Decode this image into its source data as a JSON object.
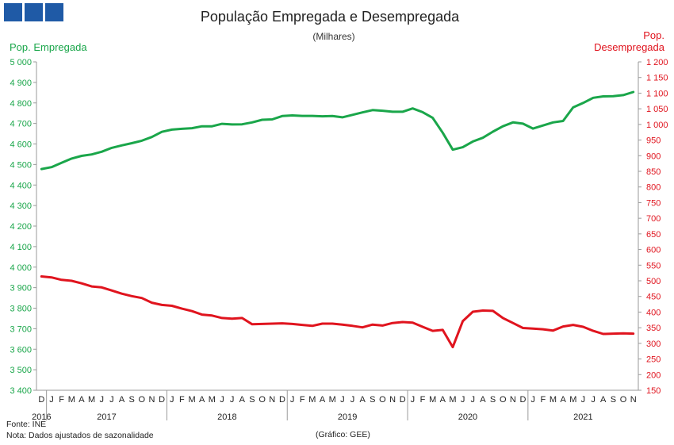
{
  "header": {
    "title": "População Empregada e Desempregada",
    "subtitle": "(Milhares)",
    "left_axis_label": "Pop. Empregada",
    "right_axis_label_line1": "Pop.",
    "right_axis_label_line2": "Desempregada"
  },
  "footer": {
    "source": "Fonte: INE",
    "note": "Nota: Dados ajustados de sazonalidade",
    "credit": "(Gráfico: GEE)"
  },
  "colors": {
    "logo": "#1f5aa6",
    "employed": "#1aa64a",
    "unemployed": "#e0141e",
    "axis": "#9a9a9a"
  },
  "chart_data": {
    "type": "line",
    "title": "População Empregada e Desempregada",
    "subtitle": "(Milhares)",
    "x_month_labels": [
      "D",
      "J",
      "F",
      "M",
      "A",
      "M",
      "J",
      "J",
      "A",
      "S",
      "O",
      "N",
      "D",
      "J",
      "F",
      "M",
      "A",
      "M",
      "J",
      "J",
      "A",
      "S",
      "O",
      "N",
      "D",
      "J",
      "F",
      "M",
      "A",
      "M",
      "J",
      "J",
      "A",
      "S",
      "O",
      "N",
      "D",
      "J",
      "F",
      "M",
      "A",
      "M",
      "J",
      "J",
      "A",
      "S",
      "O",
      "N",
      "D",
      "J",
      "F",
      "M",
      "A",
      "M",
      "J",
      "J",
      "A",
      "S",
      "O",
      "N"
    ],
    "x_year_labels": [
      {
        "label": "2016",
        "start": 0,
        "end": 0
      },
      {
        "label": "2017",
        "start": 1,
        "end": 12
      },
      {
        "label": "2018",
        "start": 13,
        "end": 24
      },
      {
        "label": "2019",
        "start": 25,
        "end": 36
      },
      {
        "label": "2020",
        "start": 37,
        "end": 48
      },
      {
        "label": "2021",
        "start": 49,
        "end": 59
      }
    ],
    "y_left": {
      "label": "Pop. Empregada",
      "min": 3400,
      "max": 5000,
      "step": 100,
      "tick_labels": [
        "3 400",
        "3 500",
        "3 600",
        "3 700",
        "3 800",
        "3 900",
        "4 000",
        "4 100",
        "4 200",
        "4 300",
        "4 400",
        "4 500",
        "4 600",
        "4 700",
        "4 800",
        "4 900",
        "5 000"
      ]
    },
    "y_right": {
      "label": "Pop. Desempregada",
      "min": 150,
      "max": 1200,
      "step": 50,
      "tick_labels": [
        "150",
        "200",
        "250",
        "300",
        "350",
        "400",
        "450",
        "500",
        "550",
        "600",
        "650",
        "700",
        "750",
        "800",
        "850",
        "900",
        "950",
        "1 000",
        "1 050",
        "1 100",
        "1 150",
        "1 200"
      ]
    },
    "series": [
      {
        "name": "Pop. Empregada",
        "axis": "left",
        "values": [
          4478,
          4487,
          4508,
          4529,
          4542,
          4549,
          4562,
          4581,
          4593,
          4604,
          4616,
          4634,
          4659,
          4670,
          4674,
          4677,
          4686,
          4686,
          4698,
          4695,
          4696,
          4705,
          4718,
          4720,
          4736,
          4739,
          4737,
          4737,
          4735,
          4736,
          4730,
          4742,
          4754,
          4765,
          4762,
          4757,
          4757,
          4773,
          4755,
          4727,
          4655,
          4572,
          4584,
          4612,
          4630,
          4660,
          4686,
          4705,
          4699,
          4675,
          4690,
          4705,
          4712,
          4778,
          4800,
          4825,
          4832,
          4833,
          4838,
          4853
        ]
      },
      {
        "name": "Pop. Desempregada",
        "axis": "right",
        "values": [
          514,
          511,
          503,
          500,
          492,
          482,
          479,
          469,
          459,
          451,
          445,
          430,
          423,
          420,
          411,
          403,
          392,
          389,
          381,
          379,
          381,
          361,
          362,
          363,
          364,
          362,
          359,
          356,
          363,
          363,
          360,
          356,
          351,
          360,
          357,
          365,
          368,
          366,
          353,
          340,
          343,
          288,
          371,
          401,
          405,
          404,
          381,
          365,
          349,
          347,
          345,
          341,
          354,
          359,
          353,
          340,
          330,
          331,
          332,
          331
        ]
      }
    ],
    "grid": false,
    "legend": "none"
  }
}
